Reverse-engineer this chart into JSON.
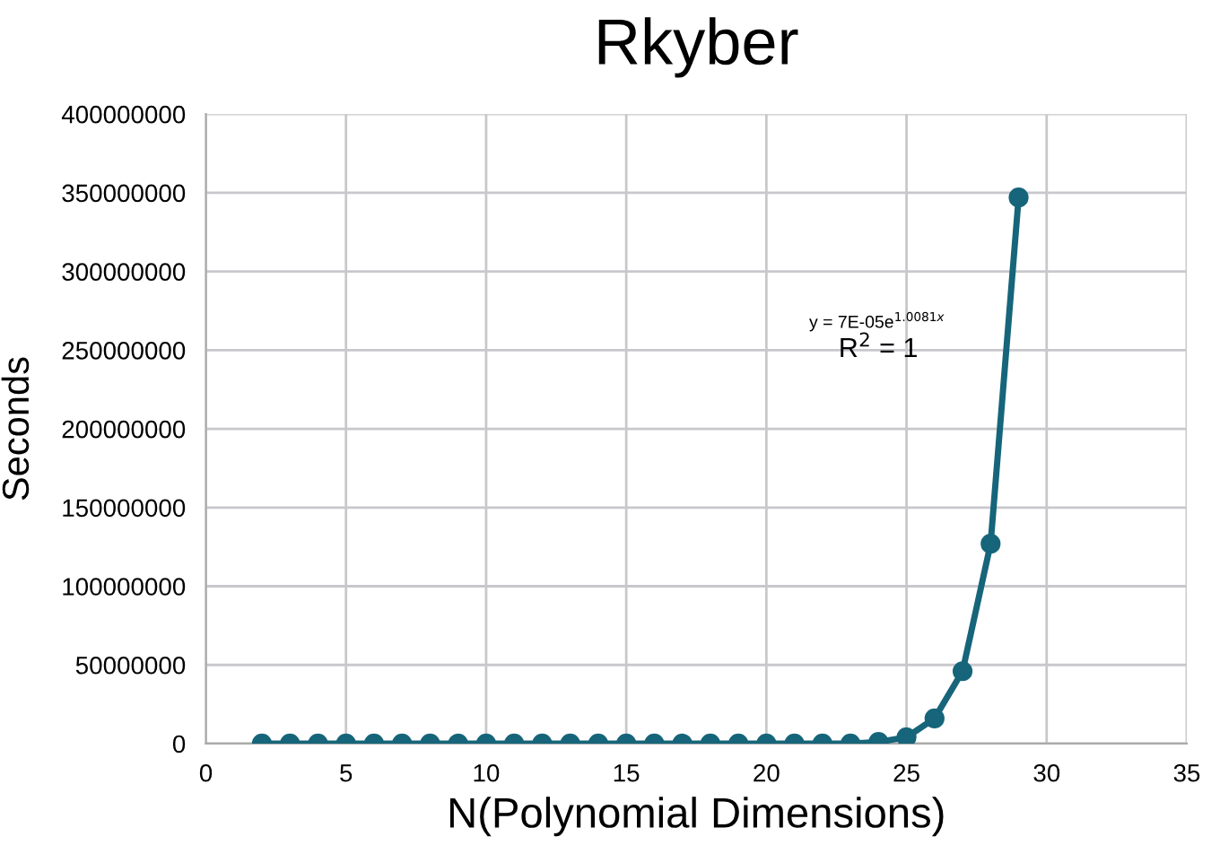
{
  "chart_data": {
    "type": "line",
    "title": "Rkyber",
    "xlabel": "N(Polynomial Dimensions)",
    "ylabel": "Seconds",
    "x": [
      2,
      3,
      4,
      5,
      6,
      7,
      8,
      9,
      10,
      11,
      12,
      13,
      14,
      15,
      16,
      17,
      18,
      19,
      20,
      21,
      22,
      23,
      24,
      25,
      26,
      27,
      28,
      29
    ],
    "series": [
      {
        "color": "#16657a",
        "values": [
          0,
          0,
          0,
          0,
          0,
          0,
          0,
          0,
          0,
          0,
          0,
          0,
          0,
          0,
          0,
          0,
          0,
          0,
          0,
          0,
          0,
          0,
          1000000,
          4000000,
          16000000,
          46000000,
          127000000,
          347000000
        ]
      }
    ],
    "xlim": [
      0,
      35
    ],
    "xticks": [
      0,
      5,
      10,
      15,
      20,
      25,
      30,
      35
    ],
    "ylim": [
      0,
      400000000
    ],
    "yticks": [
      0,
      50000000,
      100000000,
      150000000,
      200000000,
      250000000,
      300000000,
      350000000,
      400000000
    ],
    "grid": true,
    "marker": "circle",
    "line_style": "solid",
    "annotations": [
      "y = 7E-05e$^{1.0081x}$",
      "R$^{2}$ = 1"
    ]
  }
}
